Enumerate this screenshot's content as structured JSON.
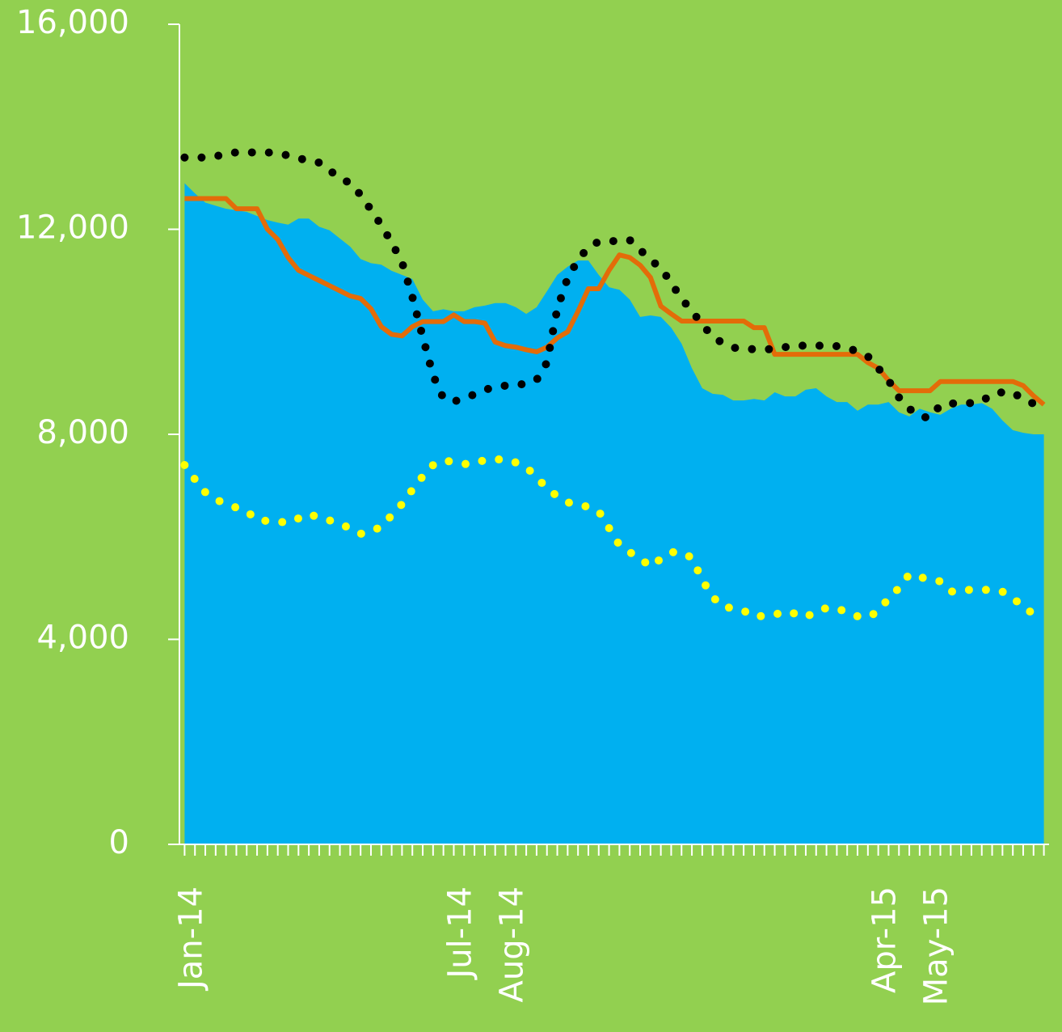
{
  "chart_data": {
    "type": "area-line",
    "categories": [
      "Jan-14",
      null,
      null,
      null,
      null,
      null,
      null,
      null,
      null,
      null,
      null,
      null,
      null,
      null,
      null,
      null,
      null,
      null,
      null,
      null,
      null,
      null,
      null,
      null,
      null,
      null,
      "Jul-14",
      null,
      null,
      null,
      null,
      "Aug-14",
      null,
      null,
      null,
      null,
      null,
      null,
      null,
      null,
      null,
      null,
      null,
      null,
      null,
      null,
      null,
      null,
      null,
      null,
      null,
      null,
      null,
      null,
      null,
      null,
      null,
      null,
      null,
      null,
      null,
      null,
      null,
      null,
      null,
      null,
      null,
      "Apr-15",
      null,
      null,
      null,
      null,
      "May-15",
      null,
      null,
      null,
      null,
      null,
      null,
      null,
      null,
      null,
      null,
      null
    ],
    "series": [
      {
        "kind": "area",
        "color": "#00b0f0",
        "values": [
          12900,
          12700,
          12520,
          12460,
          12400,
          12370,
          12340,
          12260,
          12180,
          12130,
          12090,
          12210,
          12210,
          12050,
          11980,
          11820,
          11660,
          11420,
          11340,
          11310,
          11190,
          11110,
          11030,
          10630,
          10400,
          10440,
          10400,
          10400,
          10480,
          10510,
          10560,
          10560,
          10480,
          10350,
          10480,
          10790,
          11110,
          11270,
          11390,
          11390,
          11110,
          10870,
          10820,
          10630,
          10290,
          10320,
          10290,
          10080,
          9770,
          9290,
          8900,
          8790,
          8770,
          8660,
          8660,
          8690,
          8660,
          8820,
          8740,
          8740,
          8870,
          8900,
          8740,
          8630,
          8630,
          8460,
          8580,
          8580,
          8630,
          8430,
          8350,
          8500,
          8430,
          8380,
          8500,
          8580,
          8580,
          8610,
          8500,
          8270,
          8080,
          8030,
          8000,
          8000
        ]
      },
      {
        "kind": "line",
        "color": "#e36c09",
        "values": [
          12600,
          12600,
          12600,
          12600,
          12600,
          12400,
          12400,
          12400,
          12000,
          11800,
          11450,
          11200,
          11100,
          11000,
          10900,
          10800,
          10700,
          10650,
          10450,
          10100,
          9950,
          9920,
          10100,
          10200,
          10200,
          10200,
          10330,
          10200,
          10200,
          10170,
          9800,
          9730,
          9700,
          9650,
          9610,
          9700,
          9880,
          10000,
          10400,
          10840,
          10840,
          11200,
          11500,
          11450,
          11300,
          11060,
          10500,
          10350,
          10210,
          10210,
          10210,
          10210,
          10210,
          10210,
          10210,
          10080,
          10080,
          9560,
          9560,
          9560,
          9560,
          9560,
          9560,
          9560,
          9560,
          9560,
          9400,
          9290,
          9050,
          8850,
          8850,
          8850,
          8850,
          9030,
          9030,
          9030,
          9030,
          9030,
          9030,
          9030,
          9030,
          8950,
          8750,
          8580
        ]
      },
      {
        "kind": "dots",
        "color": "#000000",
        "values": [
          13400,
          13400,
          13400,
          13420,
          13480,
          13500,
          13500,
          13500,
          13500,
          13480,
          13440,
          13380,
          13350,
          13300,
          13150,
          13000,
          12900,
          12670,
          12380,
          12080,
          11740,
          11360,
          10680,
          9900,
          9150,
          8700,
          8640,
          8700,
          8780,
          8870,
          8920,
          8950,
          8960,
          8990,
          9060,
          9400,
          10450,
          11050,
          11400,
          11650,
          11760,
          11770,
          11770,
          11790,
          11600,
          11400,
          11250,
          10950,
          10650,
          10400,
          10150,
          9900,
          9780,
          9690,
          9670,
          9660,
          9660,
          9660,
          9700,
          9730,
          9730,
          9730,
          9730,
          9720,
          9680,
          9620,
          9520,
          9290,
          9050,
          8720,
          8500,
          8350,
          8320,
          8570,
          8600,
          8610,
          8610,
          8640,
          8790,
          8820,
          8820,
          8680,
          8600,
          8500
        ]
      },
      {
        "kind": "dots",
        "color": "#ffff00",
        "values": [
          7400,
          7120,
          6870,
          6730,
          6640,
          6570,
          6500,
          6330,
          6310,
          6300,
          6270,
          6360,
          6450,
          6370,
          6320,
          6260,
          6160,
          6060,
          6100,
          6200,
          6420,
          6640,
          6920,
          7180,
          7400,
          7490,
          7460,
          7420,
          7430,
          7500,
          7510,
          7510,
          7450,
          7360,
          7160,
          6950,
          6790,
          6670,
          6640,
          6580,
          6500,
          6170,
          5840,
          5700,
          5580,
          5420,
          5570,
          5700,
          5700,
          5590,
          5160,
          4830,
          4630,
          4610,
          4560,
          4440,
          4460,
          4480,
          4550,
          4500,
          4430,
          4550,
          4610,
          4610,
          4520,
          4450,
          4430,
          4550,
          4800,
          5000,
          5270,
          5210,
          5180,
          5130,
          4930,
          4950,
          4970,
          4970,
          4960,
          4930,
          4780,
          4680,
          4470,
          null
        ]
      }
    ],
    "ylim": [
      0,
      16000
    ],
    "yticks": [
      {
        "value": 0,
        "label": "0"
      },
      {
        "value": 4000,
        "label": "4,000"
      },
      {
        "value": 8000,
        "label": "8,000"
      },
      {
        "value": 12000,
        "label": "12,000"
      },
      {
        "value": 16000,
        "label": "16,000"
      }
    ],
    "grid": false
  }
}
